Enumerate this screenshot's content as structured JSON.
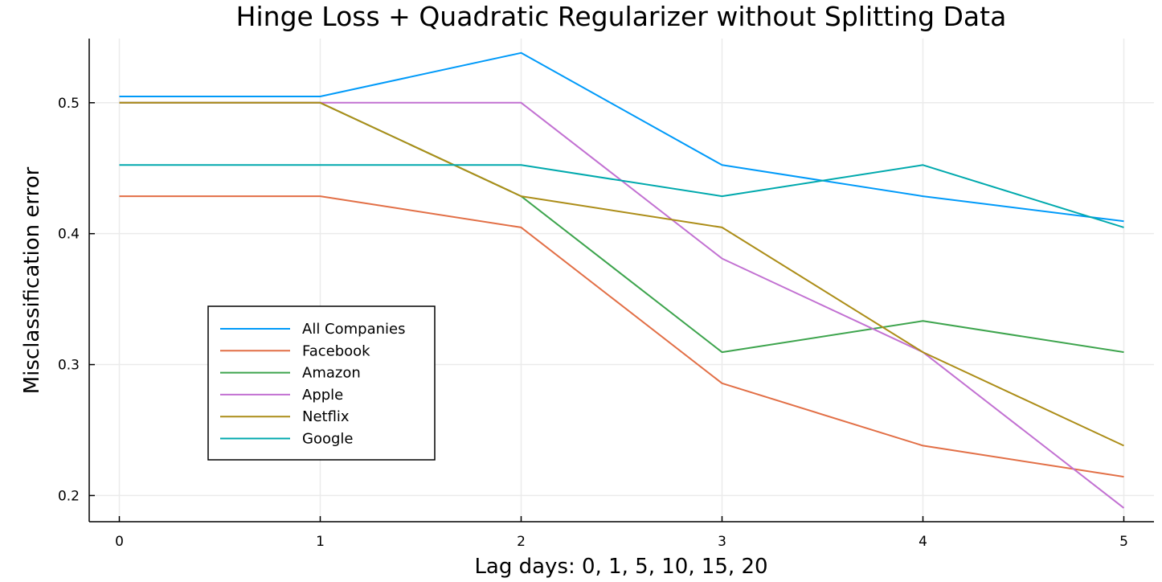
{
  "chart_data": {
    "type": "line",
    "title": "Hinge Loss + Quadratic Regularizer without Splitting Data",
    "xlabel": "Lag days: 0, 1, 5, 10, 15, 20",
    "ylabel": "Misclassification error",
    "x": [
      0,
      1,
      2,
      3,
      4,
      5
    ],
    "xticks": [
      "0",
      "1",
      "2",
      "3",
      "4",
      "5"
    ],
    "yticks": [
      "0.2",
      "0.3",
      "0.4",
      "0.5"
    ],
    "ytick_values": [
      0.2,
      0.3,
      0.4,
      0.5
    ],
    "xlim": [
      -0.15,
      5.15
    ],
    "ylim": [
      0.18,
      0.549
    ],
    "grid": true,
    "legend_position": "bottom-left",
    "series": [
      {
        "name": "All Companies",
        "color": "#009af9",
        "values": [
          0.5048,
          0.5048,
          0.5381,
          0.4524,
          0.4286,
          0.4095
        ]
      },
      {
        "name": "Facebook",
        "color": "#e26f46",
        "values": [
          0.4286,
          0.4286,
          0.4048,
          0.2857,
          0.2381,
          0.2143
        ]
      },
      {
        "name": "Amazon",
        "color": "#3da44d",
        "values": [
          0.5,
          0.5,
          0.4286,
          0.3095,
          0.3333,
          0.3095
        ]
      },
      {
        "name": "Apple",
        "color": "#c271d2",
        "values": [
          0.5,
          0.5,
          0.5,
          0.381,
          0.3095,
          0.1905
        ]
      },
      {
        "name": "Netflix",
        "color": "#ac8d18",
        "values": [
          0.5,
          0.5,
          0.4286,
          0.4048,
          0.3095,
          0.2381
        ]
      },
      {
        "name": "Google",
        "color": "#00a9ad",
        "values": [
          0.4524,
          0.4524,
          0.4524,
          0.4286,
          0.4524,
          0.4048
        ]
      }
    ]
  }
}
